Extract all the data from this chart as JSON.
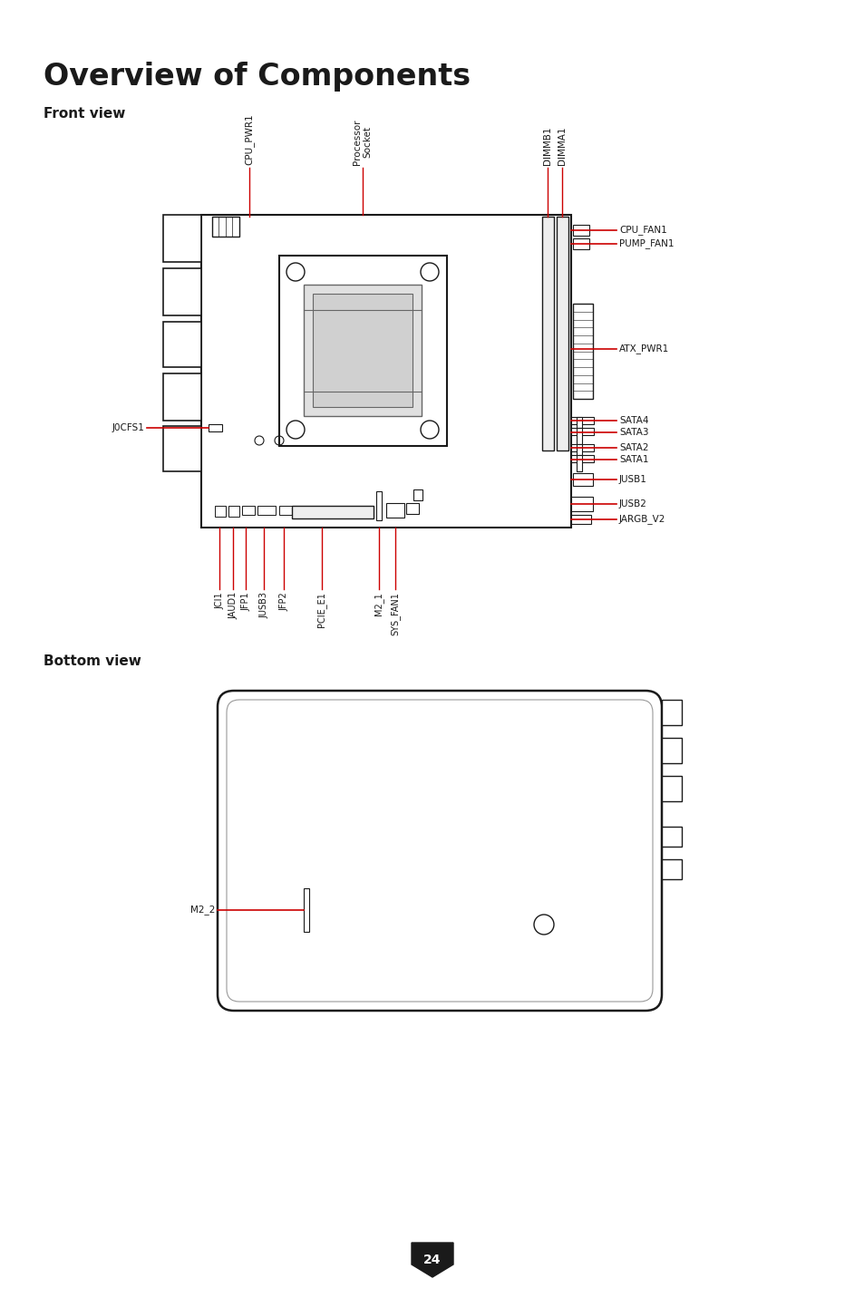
{
  "title": "Overview of Components",
  "section1": "Front view",
  "section2": "Bottom view",
  "bg_color": "#ffffff",
  "title_fontsize": 24,
  "section_fontsize": 11,
  "label_fontsize": 7.5,
  "page_number": "24",
  "red": "#cc0000",
  "black": "#1a1a1a",
  "gray": "#666666",
  "lgray": "#999999"
}
